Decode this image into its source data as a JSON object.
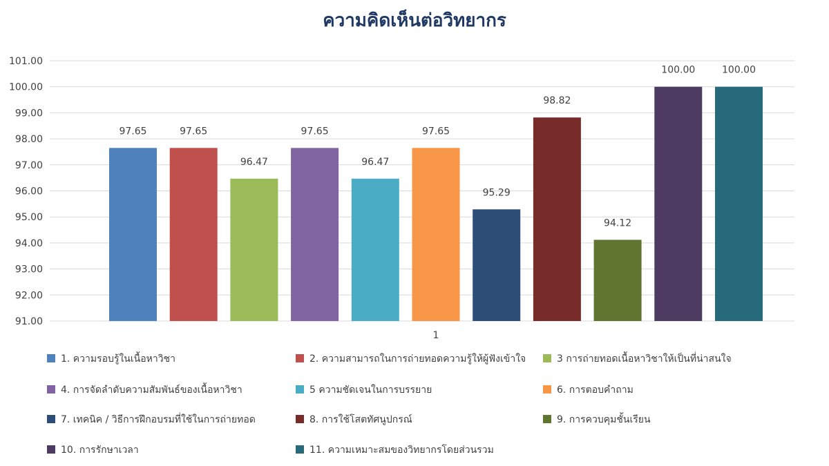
{
  "chart_data": {
    "type": "bar",
    "title": "ความคิดเห็นต่อวิทยากร",
    "categories": [
      "1"
    ],
    "ylim": [
      91,
      101
    ],
    "yticks": [
      "91.00",
      "92.00",
      "93.00",
      "94.00",
      "95.00",
      "96.00",
      "97.00",
      "98.00",
      "99.00",
      "100.00",
      "101.00"
    ],
    "grid": true,
    "legend_position": "bottom",
    "series": [
      {
        "name": "1. ความรอบรู้ในเนื้อหาวิชา",
        "value": 97.65,
        "label": "97.65",
        "color": "#4f81bd"
      },
      {
        "name": "2. ความสามารถในการถ่ายทอดความรู้ให้ผู้ฟังเข้าใจ",
        "value": 97.65,
        "label": "97.65",
        "color": "#c0504d"
      },
      {
        "name": "3  การถ่ายทอดเนื้อหาวิชาให้เป็นที่น่าสนใจ",
        "value": 96.47,
        "label": "96.47",
        "color": "#9bbb59"
      },
      {
        "name": "4. การจัดลำดับความสัมพันธ์ของเนื้อหาวิชา",
        "value": 97.65,
        "label": "97.65",
        "color": "#8064a2"
      },
      {
        "name": "5  ความชัดเจนในการบรรยาย",
        "value": 96.47,
        "label": "96.47",
        "color": "#4bacc6"
      },
      {
        "name": "6. การตอบคำถาม",
        "value": 97.65,
        "label": "97.65",
        "color": "#f79646"
      },
      {
        "name": "7. เทคนิค / วิธีการฝึกอบรมที่ใช้ในการถ่ายทอด",
        "value": 95.29,
        "label": "95.29",
        "color": "#2c4d75"
      },
      {
        "name": "8. การใช้โสตทัศนูปกรณ์",
        "value": 98.82,
        "label": "98.82",
        "color": "#772c2a"
      },
      {
        "name": "9. การควบคุมชั้นเรียน",
        "value": 94.12,
        "label": "94.12",
        "color": "#5f7530"
      },
      {
        "name": "10. การรักษาเวลา",
        "value": 100.0,
        "label": "100.00",
        "color": "#4d3b62"
      },
      {
        "name": "11. ความเหมาะสมของวิทยากรโดยส่วนรวม",
        "value": 100.0,
        "label": "100.00",
        "color": "#276a7c"
      }
    ]
  }
}
